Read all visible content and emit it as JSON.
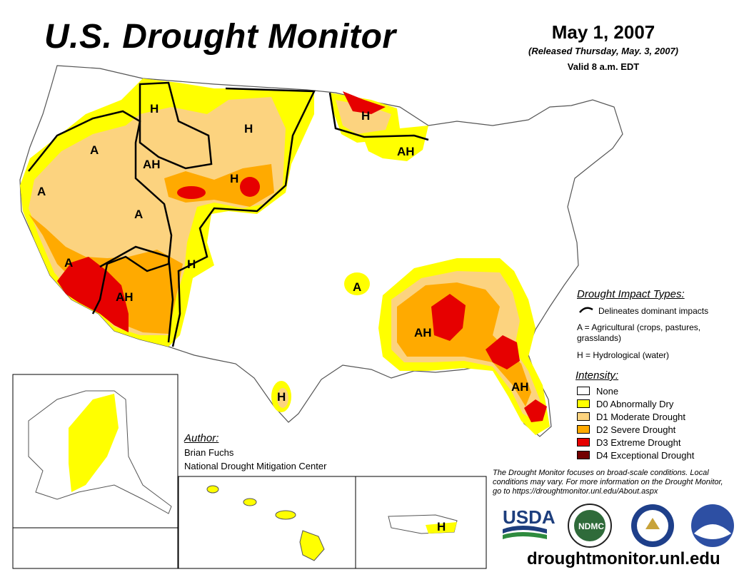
{
  "title": "U.S. Drought Monitor",
  "date": "May 1, 2007",
  "released": "(Released Thursday, May. 3, 2007)",
  "valid": "Valid 8 a.m. EDT",
  "impact_types": {
    "title": "Drought Impact Types:",
    "line": "Delineates dominant impacts",
    "agricultural": "A = Agricultural (crops, pastures, grasslands)",
    "hydrological": "H = Hydrological (water)"
  },
  "intensity": {
    "title": "Intensity:",
    "items": [
      {
        "label": "None",
        "color": "#ffffff"
      },
      {
        "label": "D0 Abnormally Dry",
        "color": "#ffff00"
      },
      {
        "label": "D1 Moderate Drought",
        "color": "#fcd37f"
      },
      {
        "label": "D2 Severe Drought",
        "color": "#ffaa00"
      },
      {
        "label": "D3 Extreme Drought",
        "color": "#e60000"
      },
      {
        "label": "D4 Exceptional Drought",
        "color": "#730000"
      }
    ]
  },
  "author": {
    "label": "Author:",
    "name": "Brian Fuchs",
    "org": "National Drought Mitigation Center"
  },
  "disclaimer": "The Drought Monitor focuses on broad-scale conditions. Local conditions may vary. For more information on the Drought Monitor, go to https://droughtmonitor.unl.edu/About.aspx",
  "url": "droughtmonitor.unl.edu",
  "logos": {
    "usda": "USDA",
    "ndmc": "NDMC"
  },
  "map_labels": [
    {
      "text": "H",
      "region": "montana-west"
    },
    {
      "text": "H",
      "region": "montana-east"
    },
    {
      "text": "H",
      "region": "minnesota-north"
    },
    {
      "text": "AH",
      "region": "wisconsin"
    },
    {
      "text": "A",
      "region": "oregon"
    },
    {
      "text": "AH",
      "region": "idaho"
    },
    {
      "text": "H",
      "region": "wyoming"
    },
    {
      "text": "A",
      "region": "california-north"
    },
    {
      "text": "A",
      "region": "nevada-utah"
    },
    {
      "text": "A",
      "region": "southern-california"
    },
    {
      "text": "H",
      "region": "colorado"
    },
    {
      "text": "AH",
      "region": "arizona"
    },
    {
      "text": "A",
      "region": "arkansas"
    },
    {
      "text": "AH",
      "region": "southeast"
    },
    {
      "text": "AH",
      "region": "florida"
    },
    {
      "text": "H",
      "region": "south-texas"
    },
    {
      "text": "H",
      "region": "puerto-rico"
    }
  ]
}
